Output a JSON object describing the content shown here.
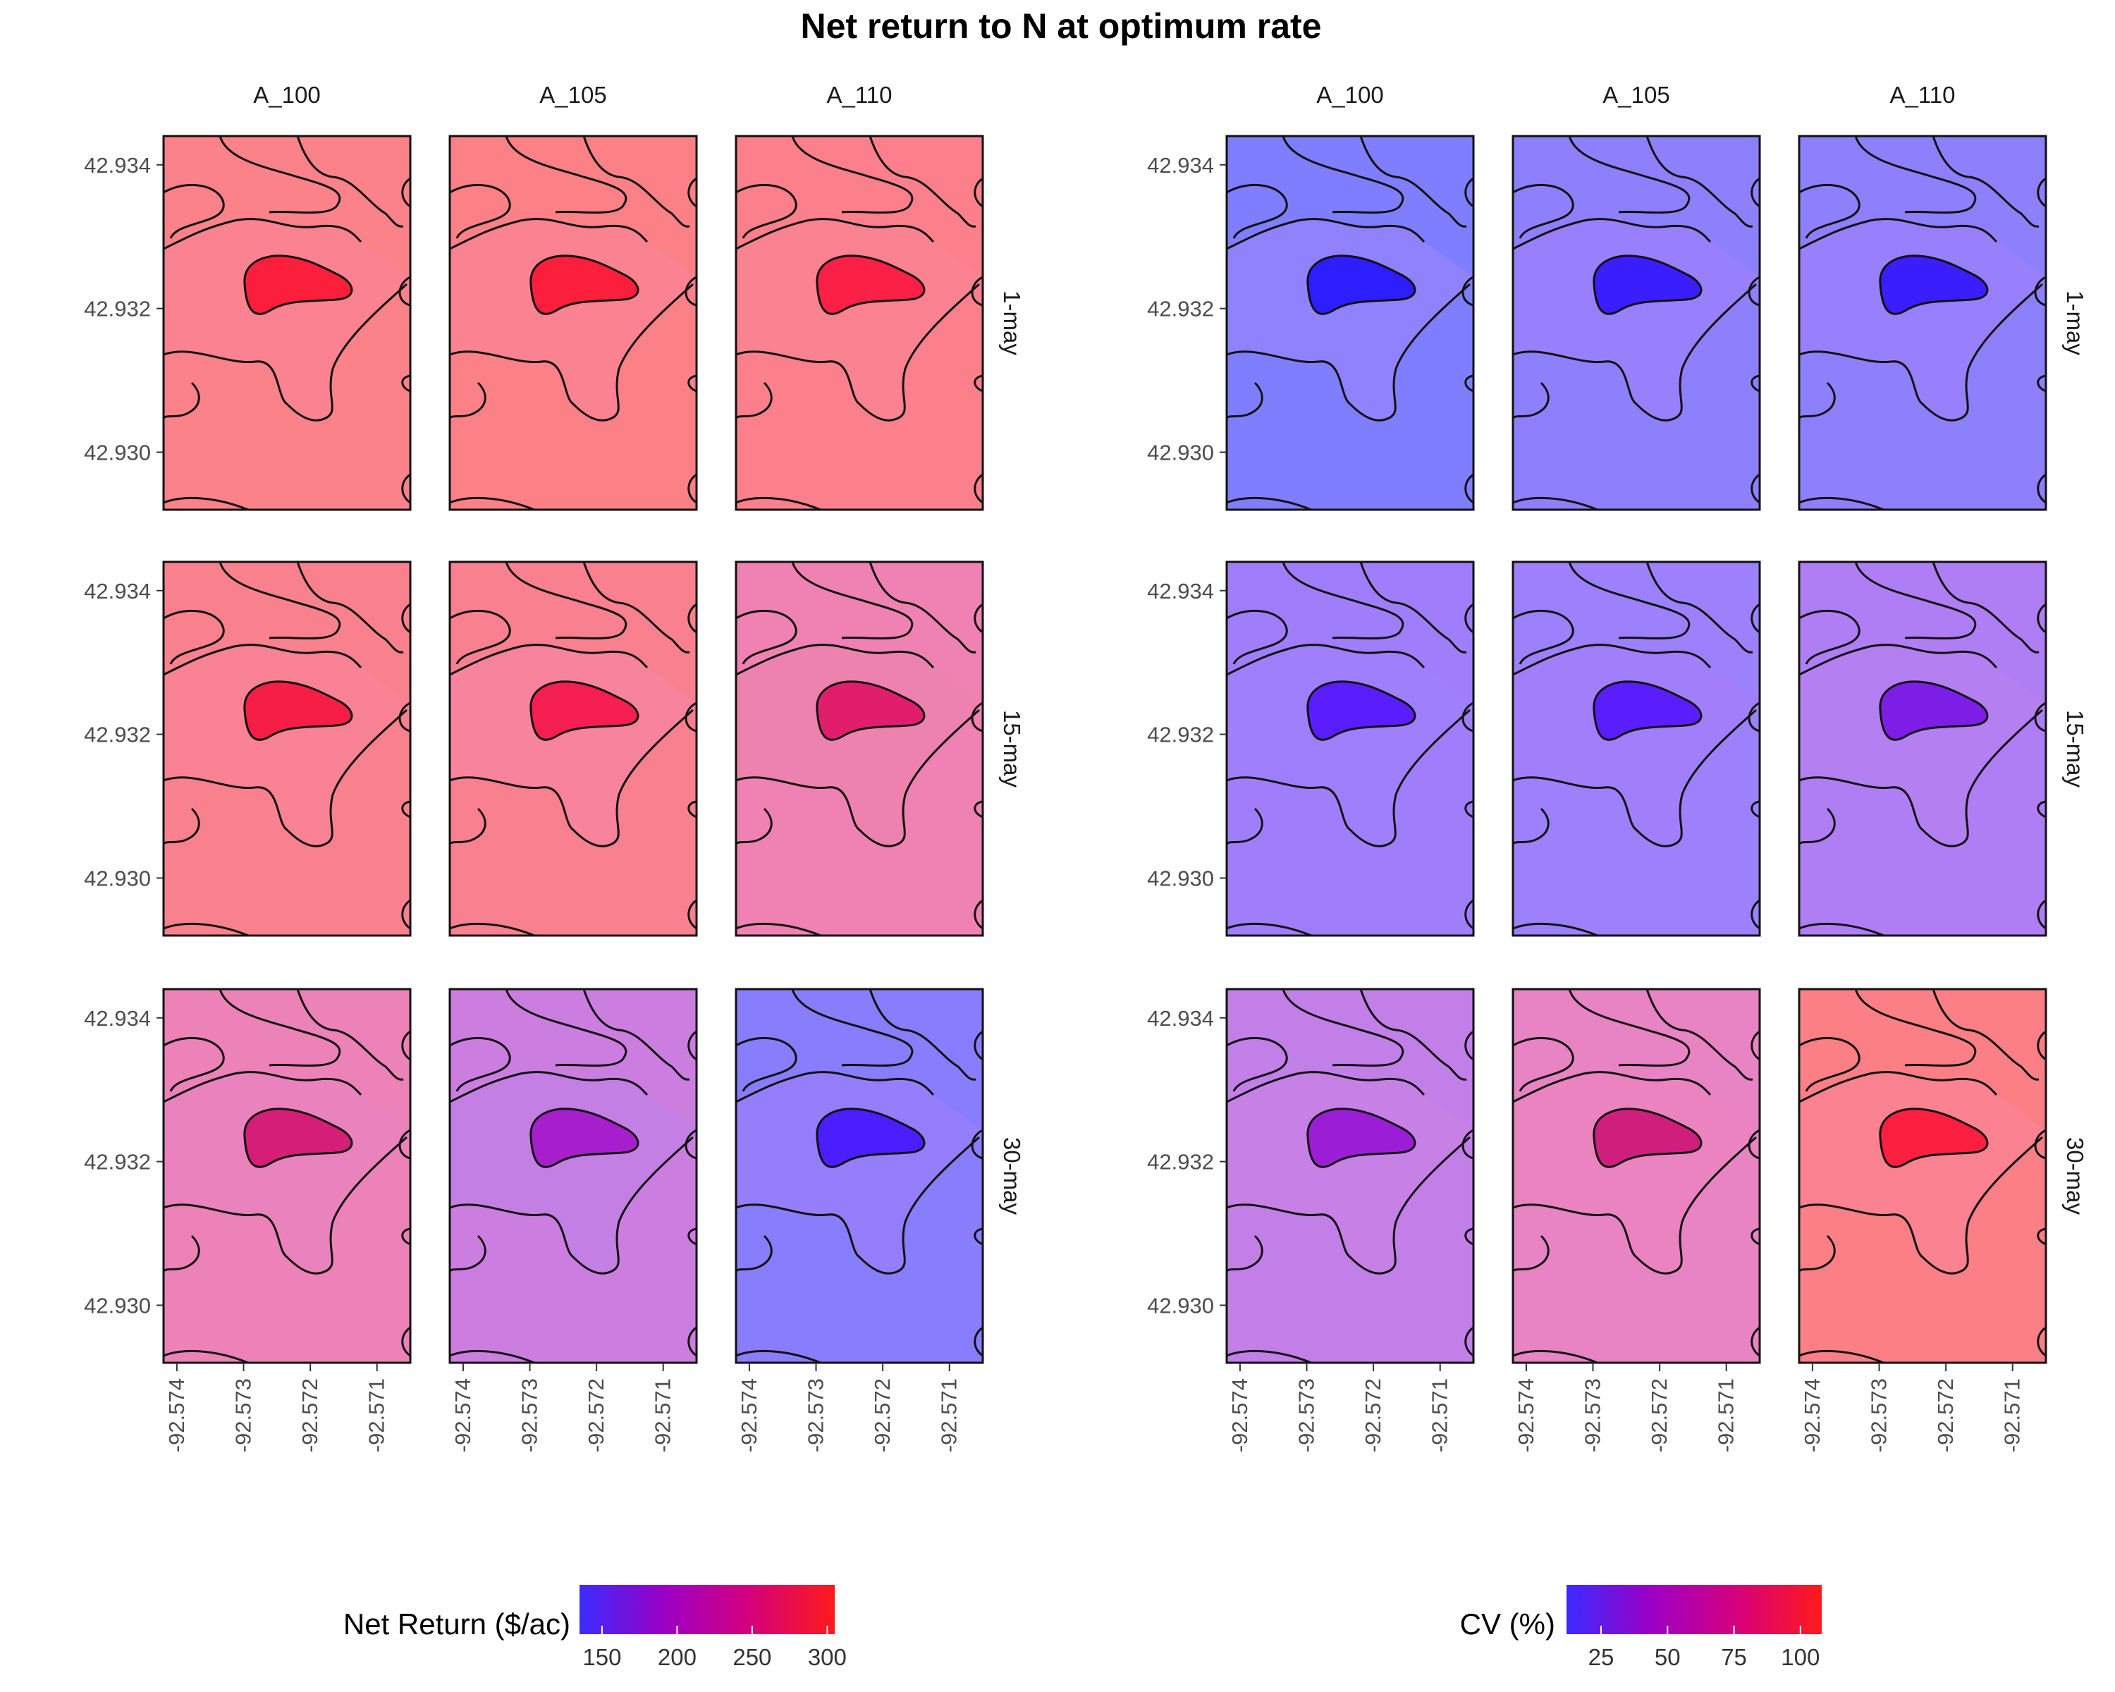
{
  "title": "Net return to N at optimum rate",
  "chart_data": [
    {
      "type": "heatmap",
      "panel": "left",
      "columns": [
        "A_100",
        "A_105",
        "A_110"
      ],
      "rows": [
        "1-may",
        "15-may",
        "30-may"
      ],
      "x_ticks": [
        -92.574,
        -92.573,
        -92.572,
        -92.571
      ],
      "x_tick_labels": [
        "-92.574",
        "-92.573",
        "-92.572",
        "-92.571"
      ],
      "y_ticks": [
        42.934,
        42.932,
        42.93
      ],
      "y_tick_labels": [
        "42.934",
        "42.932",
        "42.930"
      ],
      "xlim": [
        -92.5742,
        -92.5705
      ],
      "ylim": [
        42.9292,
        42.9344
      ],
      "legend": {
        "title": "Net Return  ($/ac)",
        "min": 135,
        "max": 305,
        "ticks": [
          150,
          200,
          250,
          300
        ],
        "tick_labels": [
          "150",
          "200",
          "250",
          "300"
        ],
        "colors": [
          "#3a2bff",
          "#9b00c6",
          "#d4007e",
          "#ff1a1a"
        ]
      },
      "cell_colors": [
        [
          {
            "background": "#fb8289",
            "contour": "#fb8290",
            "core": "#fb1f3b"
          },
          {
            "background": "#fc8186",
            "contour": "#fb8290",
            "core": "#fb1f3b"
          },
          {
            "background": "#fb808c",
            "contour": "#fb8290",
            "core": "#fa2046"
          }
        ],
        [
          {
            "background": "#f9818d",
            "contour": "#f98294",
            "core": "#f71e45"
          },
          {
            "background": "#f9808e",
            "contour": "#f7839c",
            "core": "#f51e50"
          },
          {
            "background": "#ef82b2",
            "contour": "#ee82ae",
            "core": "#e11e6b"
          }
        ],
        [
          {
            "background": "#ec82b7",
            "contour": "#ea83bd",
            "core": "#d41e78"
          },
          {
            "background": "#cc7ee0",
            "contour": "#c37fe4",
            "core": "#a71ecd"
          },
          {
            "background": "#877dfd",
            "contour": "#957efb",
            "core": "#4a1efe"
          }
        ]
      ]
    },
    {
      "type": "heatmap",
      "panel": "right",
      "columns": [
        "A_100",
        "A_105",
        "A_110"
      ],
      "rows": [
        "1-may",
        "15-may",
        "30-may"
      ],
      "x_ticks": [
        -92.574,
        -92.573,
        -92.572,
        -92.571
      ],
      "x_tick_labels": [
        "-92.574",
        "-92.573",
        "-92.572",
        "-92.571"
      ],
      "y_ticks": [
        42.934,
        42.932,
        42.93
      ],
      "y_tick_labels": [
        "42.934",
        "42.932",
        "42.930"
      ],
      "xlim": [
        -92.5742,
        -92.5705
      ],
      "ylim": [
        42.9292,
        42.9344
      ],
      "legend": {
        "title": "CV (%)",
        "min": 12,
        "max": 108,
        "ticks": [
          25,
          50,
          75,
          100
        ],
        "tick_labels": [
          "25",
          "50",
          "75",
          "100"
        ],
        "colors": [
          "#3a2bff",
          "#9b00c6",
          "#d4007e",
          "#ff1a1a"
        ]
      },
      "cell_colors": [
        [
          {
            "background": "#7e7efe",
            "contour": "#9081fd",
            "core": "#2c1efe"
          },
          {
            "background": "#8e7ffd",
            "contour": "#9880fc",
            "core": "#3a1efe"
          },
          {
            "background": "#8e7ffd",
            "contour": "#9880fc",
            "core": "#3a1efe"
          }
        ],
        [
          {
            "background": "#a07efb",
            "contour": "#9f7ffb",
            "core": "#5a1efe"
          },
          {
            "background": "#9c80fc",
            "contour": "#a27ffa",
            "core": "#5a1efe"
          },
          {
            "background": "#b07ef4",
            "contour": "#b37ff1",
            "core": "#7d1ee6"
          }
        ],
        [
          {
            "background": "#c27fe8",
            "contour": "#c780e6",
            "core": "#9b1ed6"
          },
          {
            "background": "#e883c4",
            "contour": "#ea83c0",
            "core": "#d01e7d"
          },
          {
            "background": "#fc7f86",
            "contour": "#fb8290",
            "core": "#fc1f40"
          }
        ]
      ]
    }
  ]
}
